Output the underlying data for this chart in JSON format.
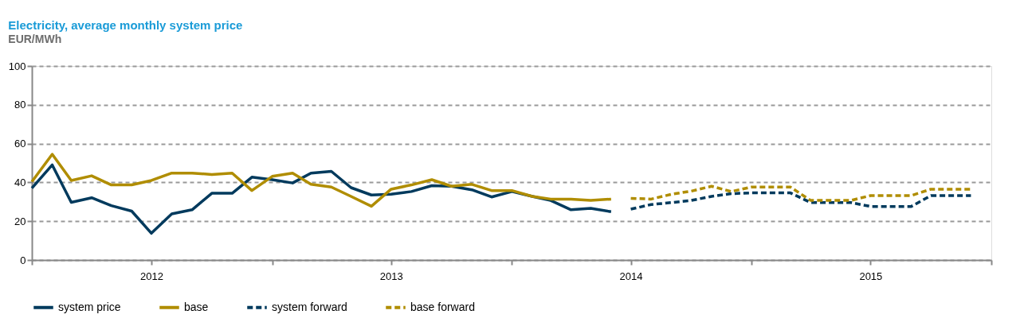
{
  "chart_data": {
    "type": "line",
    "title": "Electricity, average monthly system price",
    "subtitle": "EUR/MWh",
    "x": [
      "2012-01",
      "2012-02",
      "2012-03",
      "2012-04",
      "2012-05",
      "2012-06",
      "2012-07",
      "2012-08",
      "2012-09",
      "2012-10",
      "2012-11",
      "2012-12",
      "2013-01",
      "2013-02",
      "2013-03",
      "2013-04",
      "2013-05",
      "2013-06",
      "2013-07",
      "2013-08",
      "2013-09",
      "2013-10",
      "2013-11",
      "2013-12",
      "2014-01",
      "2014-02",
      "2014-03",
      "2014-04",
      "2014-05",
      "2014-06",
      "2014-07",
      "2014-08",
      "2014-09",
      "2014-10",
      "2014-11",
      "2014-12",
      "2015-01",
      "2015-02",
      "2015-03",
      "2015-04",
      "2015-05",
      "2015-06",
      "2015-07",
      "2015-08",
      "2015-09",
      "2015-10",
      "2015-11",
      "2015-12"
    ],
    "series": [
      {
        "name": "system price",
        "color": "#003a5d",
        "line_style": "solid",
        "values": [
          37,
          49,
          29.7,
          32.1,
          28,
          25.2,
          13.8,
          23.8,
          25.9,
          34.4,
          34.4,
          42.7,
          41.4,
          39.7,
          44.8,
          45.7,
          37.3,
          33.5,
          33.9,
          35.3,
          38.3,
          38,
          36.2,
          32.5,
          35.3,
          32.8,
          30.7,
          25.9,
          26.6,
          24.9,
          null,
          null,
          null,
          null,
          null,
          null,
          null,
          null,
          null,
          null,
          null,
          null,
          null,
          null,
          null,
          null,
          null,
          null
        ]
      },
      {
        "name": "base",
        "color": "#b08d00",
        "line_style": "solid",
        "values": [
          40.4,
          54.5,
          41,
          43.4,
          38.7,
          38.7,
          41,
          44.8,
          44.8,
          44.1,
          44.8,
          35.8,
          43.1,
          44.8,
          39,
          37.6,
          32.8,
          27.7,
          36.5,
          38.7,
          41.4,
          38,
          39,
          35.8,
          35.8,
          32.8,
          31.4,
          31.4,
          30.7,
          31.4,
          null,
          null,
          null,
          null,
          null,
          null,
          null,
          null,
          null,
          null,
          null,
          null,
          null,
          null,
          null,
          null,
          null,
          null
        ]
      },
      {
        "name": "system forward",
        "color": "#003a5d",
        "line_style": "dashed",
        "values": [
          null,
          null,
          null,
          null,
          null,
          null,
          null,
          null,
          null,
          null,
          null,
          null,
          null,
          null,
          null,
          null,
          null,
          null,
          null,
          null,
          null,
          null,
          null,
          null,
          null,
          null,
          null,
          null,
          null,
          null,
          26.2,
          28.6,
          29.6,
          30.7,
          32.8,
          34.2,
          34.6,
          34.6,
          34.6,
          29.6,
          29.6,
          29.6,
          27.6,
          27.6,
          27.6,
          33.2,
          33.2,
          33.2
        ]
      },
      {
        "name": "base forward",
        "color": "#b08d00",
        "line_style": "dashed",
        "values": [
          null,
          null,
          null,
          null,
          null,
          null,
          null,
          null,
          null,
          null,
          null,
          null,
          null,
          null,
          null,
          null,
          null,
          null,
          null,
          null,
          null,
          null,
          null,
          null,
          null,
          null,
          null,
          null,
          null,
          null,
          31.8,
          31.4,
          33.9,
          35.5,
          38,
          35.3,
          37.6,
          37.6,
          37.6,
          30.7,
          30.7,
          30.7,
          33.2,
          33.2,
          33.2,
          36.5,
          36.5,
          36.5
        ]
      }
    ],
    "xlim": [
      "2012-01",
      "2016-01"
    ],
    "xticks": [
      {
        "value": "2012-01",
        "label": null
      },
      {
        "value": "2012-07",
        "label": "2012"
      },
      {
        "value": "2013-01",
        "label": null
      },
      {
        "value": "2013-07",
        "label": "2013"
      },
      {
        "value": "2014-01",
        "label": null
      },
      {
        "value": "2014-07",
        "label": "2014"
      },
      {
        "value": "2015-01",
        "label": null
      },
      {
        "value": "2015-07",
        "label": "2015"
      },
      {
        "value": "2016-01",
        "label": null
      }
    ],
    "ylim": [
      0,
      100
    ],
    "yticks": [
      0,
      20,
      40,
      60,
      80,
      100
    ],
    "grid": "y",
    "legend": "bottom",
    "marker": "none"
  }
}
